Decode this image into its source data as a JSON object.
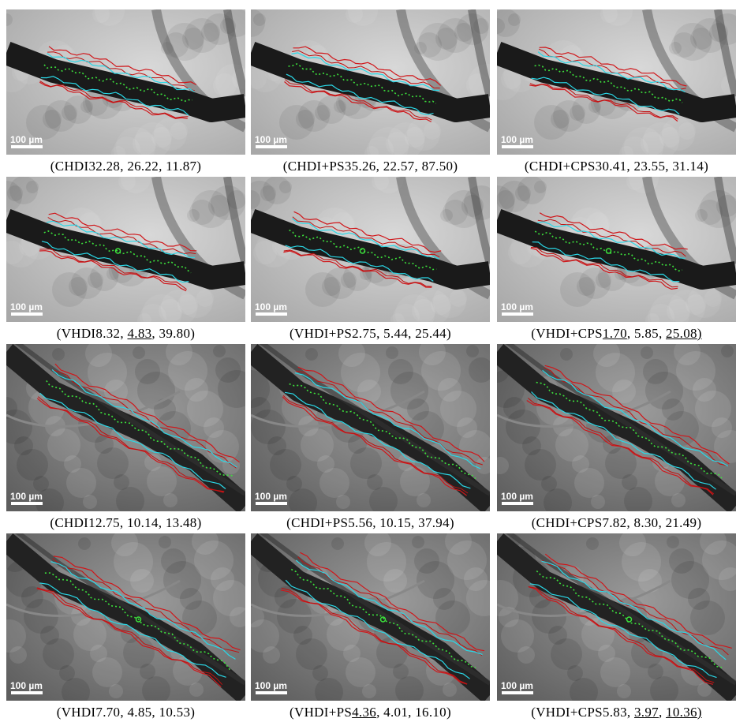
{
  "figure": {
    "panels": [
      {
        "method": "CHDI",
        "metrics": [
          "32.28",
          "26.22",
          "11.87"
        ],
        "underlined": [
          false,
          false,
          false
        ],
        "scale_bar": "100 µm"
      },
      {
        "method": "CHDI+PS",
        "metrics": [
          "35.26",
          "22.57",
          "87.50"
        ],
        "underlined": [
          false,
          false,
          false
        ],
        "scale_bar": "100 µm"
      },
      {
        "method": "CHDI+CPS",
        "metrics": [
          "30.41",
          "23.55",
          "31.14"
        ],
        "underlined": [
          false,
          false,
          false
        ],
        "scale_bar": "100 µm"
      },
      {
        "method": "VHDI",
        "metrics": [
          "8.32",
          "4.83",
          "39.80"
        ],
        "underlined": [
          false,
          true,
          false
        ],
        "scale_bar": "100 µm"
      },
      {
        "method": "VHDI+PS",
        "metrics": [
          "2.75",
          "5.44",
          "25.44"
        ],
        "underlined": [
          false,
          false,
          false
        ],
        "scale_bar": "100 µm"
      },
      {
        "method": "VHDI+CPS",
        "metrics": [
          "1.70",
          "5.85",
          "25.08"
        ],
        "underlined": [
          true,
          false,
          true
        ],
        "scale_bar": "100 µm"
      },
      {
        "method": "CHDI",
        "metrics": [
          "12.75",
          "10.14",
          "13.48"
        ],
        "underlined": [
          false,
          false,
          false
        ],
        "scale_bar": "100 µm"
      },
      {
        "method": "CHDI+PS",
        "metrics": [
          "5.56",
          "10.15",
          "37.94"
        ],
        "underlined": [
          false,
          false,
          false
        ],
        "scale_bar": "100 µm"
      },
      {
        "method": "CHDI+CPS",
        "metrics": [
          "7.82",
          "8.30",
          "21.49"
        ],
        "underlined": [
          false,
          false,
          false
        ],
        "scale_bar": "100 µm"
      },
      {
        "method": "VHDI",
        "metrics": [
          "7.70",
          "4.85",
          "10.53"
        ],
        "underlined": [
          false,
          false,
          false
        ],
        "scale_bar": "100 µm"
      },
      {
        "method": "VHDI+PS",
        "metrics": [
          "4.36",
          "4.01",
          "16.10"
        ],
        "underlined": [
          true,
          false,
          false
        ],
        "scale_bar": "100 µm"
      },
      {
        "method": "VHDI+CPS",
        "metrics": [
          "5.83",
          "3.97",
          "10.36"
        ],
        "underlined": [
          false,
          true,
          true
        ],
        "scale_bar": "100 µm"
      }
    ]
  }
}
